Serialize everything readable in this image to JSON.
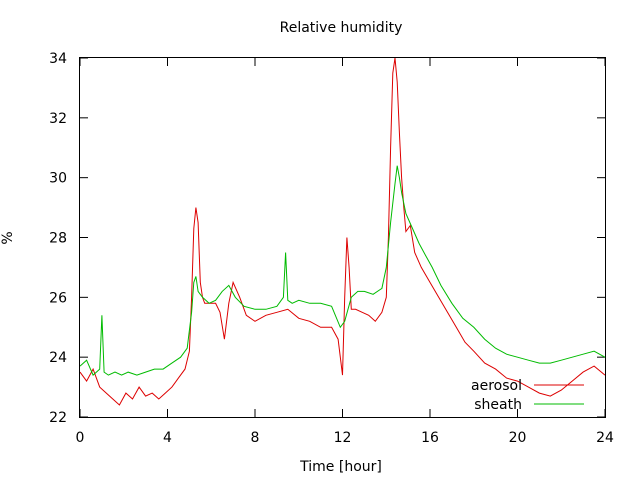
{
  "chart_data": {
    "type": "line",
    "title": "Relative humidity",
    "xlabel": "Time [hour]",
    "ylabel": "%",
    "xlim": [
      0,
      24
    ],
    "ylim": [
      22,
      34
    ],
    "xticks": [
      0,
      4,
      8,
      12,
      16,
      20,
      24
    ],
    "yticks": [
      22,
      24,
      26,
      28,
      30,
      32,
      34
    ],
    "grid": false,
    "legend_position": "bottom-right",
    "series": [
      {
        "name": "aerosol",
        "color": "#dd0000",
        "x": [
          0,
          0.3,
          0.6,
          0.9,
          1.2,
          1.5,
          1.8,
          2.1,
          2.4,
          2.7,
          3.0,
          3.3,
          3.6,
          3.9,
          4.2,
          4.5,
          4.8,
          5.0,
          5.1,
          5.2,
          5.3,
          5.4,
          5.5,
          5.6,
          5.7,
          5.9,
          6.2,
          6.4,
          6.6,
          6.8,
          7.0,
          7.3,
          7.6,
          8.0,
          8.5,
          9.0,
          9.5,
          10.0,
          10.5,
          11.0,
          11.5,
          11.8,
          12.0,
          12.1,
          12.2,
          12.3,
          12.4,
          12.6,
          12.9,
          13.2,
          13.5,
          13.8,
          14.0,
          14.1,
          14.2,
          14.3,
          14.4,
          14.5,
          14.6,
          14.7,
          14.8,
          14.9,
          15.1,
          15.3,
          15.6,
          16.0,
          16.4,
          16.8,
          17.2,
          17.6,
          18.0,
          18.5,
          19.0,
          19.5,
          20.0,
          20.5,
          21.0,
          21.5,
          22.0,
          22.5,
          23.0,
          23.5,
          24.0
        ],
        "values": [
          23.5,
          23.2,
          23.6,
          23.0,
          22.8,
          22.6,
          22.4,
          22.8,
          22.6,
          23.0,
          22.7,
          22.8,
          22.6,
          22.8,
          23.0,
          23.3,
          23.6,
          24.2,
          26.0,
          28.3,
          29.0,
          28.5,
          26.5,
          26.0,
          25.8,
          25.8,
          25.8,
          25.5,
          24.6,
          25.8,
          26.5,
          26.0,
          25.4,
          25.2,
          25.4,
          25.5,
          25.6,
          25.3,
          25.2,
          25.0,
          25.0,
          24.6,
          23.4,
          26.0,
          28.0,
          27.0,
          25.6,
          25.6,
          25.5,
          25.4,
          25.2,
          25.5,
          26.0,
          28.0,
          31.0,
          33.5,
          34.0,
          33.2,
          31.5,
          30.0,
          29.0,
          28.2,
          28.4,
          27.5,
          27.0,
          26.5,
          26.0,
          25.5,
          25.0,
          24.5,
          24.2,
          23.8,
          23.6,
          23.3,
          23.2,
          23.0,
          22.8,
          22.7,
          22.9,
          23.2,
          23.5,
          23.7,
          23.4
        ]
      },
      {
        "name": "sheath",
        "color": "#00bb00",
        "x": [
          0,
          0.3,
          0.6,
          0.9,
          1.0,
          1.1,
          1.3,
          1.6,
          1.9,
          2.2,
          2.6,
          3.0,
          3.4,
          3.8,
          4.2,
          4.6,
          4.9,
          5.1,
          5.2,
          5.3,
          5.4,
          5.6,
          5.9,
          6.2,
          6.5,
          6.8,
          7.1,
          7.5,
          8.0,
          8.5,
          9.0,
          9.3,
          9.4,
          9.5,
          9.7,
          10.0,
          10.5,
          11.0,
          11.5,
          11.9,
          12.1,
          12.4,
          12.7,
          13.0,
          13.4,
          13.8,
          14.0,
          14.2,
          14.4,
          14.5,
          14.6,
          14.7,
          14.9,
          15.2,
          15.5,
          15.8,
          16.1,
          16.5,
          17.0,
          17.5,
          18.0,
          18.5,
          19.0,
          19.5,
          20.0,
          20.5,
          21.0,
          21.5,
          22.0,
          22.5,
          23.0,
          23.5,
          24.0
        ],
        "values": [
          23.7,
          23.9,
          23.4,
          23.6,
          25.4,
          23.5,
          23.4,
          23.5,
          23.4,
          23.5,
          23.4,
          23.5,
          23.6,
          23.6,
          23.8,
          24.0,
          24.3,
          25.5,
          26.5,
          26.7,
          26.2,
          26.0,
          25.8,
          25.9,
          26.2,
          26.4,
          26.0,
          25.7,
          25.6,
          25.6,
          25.7,
          26.0,
          27.5,
          25.9,
          25.8,
          25.9,
          25.8,
          25.8,
          25.7,
          25.0,
          25.2,
          26.0,
          26.2,
          26.2,
          26.1,
          26.3,
          27.0,
          28.5,
          29.8,
          30.4,
          30.0,
          29.5,
          28.8,
          28.3,
          27.8,
          27.4,
          27.0,
          26.4,
          25.8,
          25.3,
          25.0,
          24.6,
          24.3,
          24.1,
          24.0,
          23.9,
          23.8,
          23.8,
          23.9,
          24.0,
          24.1,
          24.2,
          24.0
        ]
      }
    ]
  }
}
